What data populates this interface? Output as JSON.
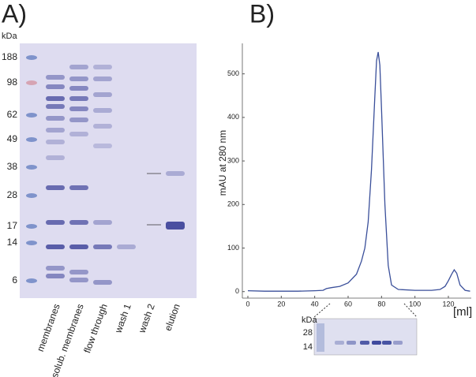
{
  "panel_a": {
    "label": "A)",
    "unit": "kDa",
    "markers": [
      "188",
      "98",
      "62",
      "49",
      "38",
      "28",
      "17",
      "14",
      "6"
    ],
    "lanes": [
      "membranes",
      "solub. membranes",
      "flow through",
      "wash 1",
      "wash 2",
      "elution"
    ]
  },
  "chart_data": {
    "type": "line",
    "label": "B)",
    "y_label": "mAU at 280 nm",
    "x_unit": "[ml]",
    "color": "#3a4f9a",
    "x": [
      0,
      10,
      20,
      30,
      40,
      45,
      47,
      50,
      55,
      60,
      65,
      68,
      70,
      72,
      74,
      76,
      77,
      78,
      79,
      80,
      82,
      84,
      86,
      90,
      100,
      110,
      115,
      118,
      120,
      122,
      123.5,
      125,
      127,
      130,
      133
    ],
    "values": [
      2,
      1,
      1,
      1,
      2,
      3,
      7,
      9,
      12,
      20,
      40,
      70,
      100,
      160,
      280,
      450,
      530,
      550,
      520,
      420,
      200,
      60,
      15,
      5,
      3,
      3,
      5,
      12,
      25,
      40,
      50,
      42,
      15,
      3,
      1
    ],
    "xlim": [
      -3.3,
      133.7
    ],
    "ylim": [
      -15,
      570
    ],
    "xticks": [
      0,
      20,
      40,
      60,
      80,
      100,
      120
    ],
    "yticks": [
      0,
      100,
      200,
      300,
      400,
      500
    ]
  },
  "inset": {
    "unit": "kDa",
    "markers": [
      "28",
      "14"
    ]
  }
}
